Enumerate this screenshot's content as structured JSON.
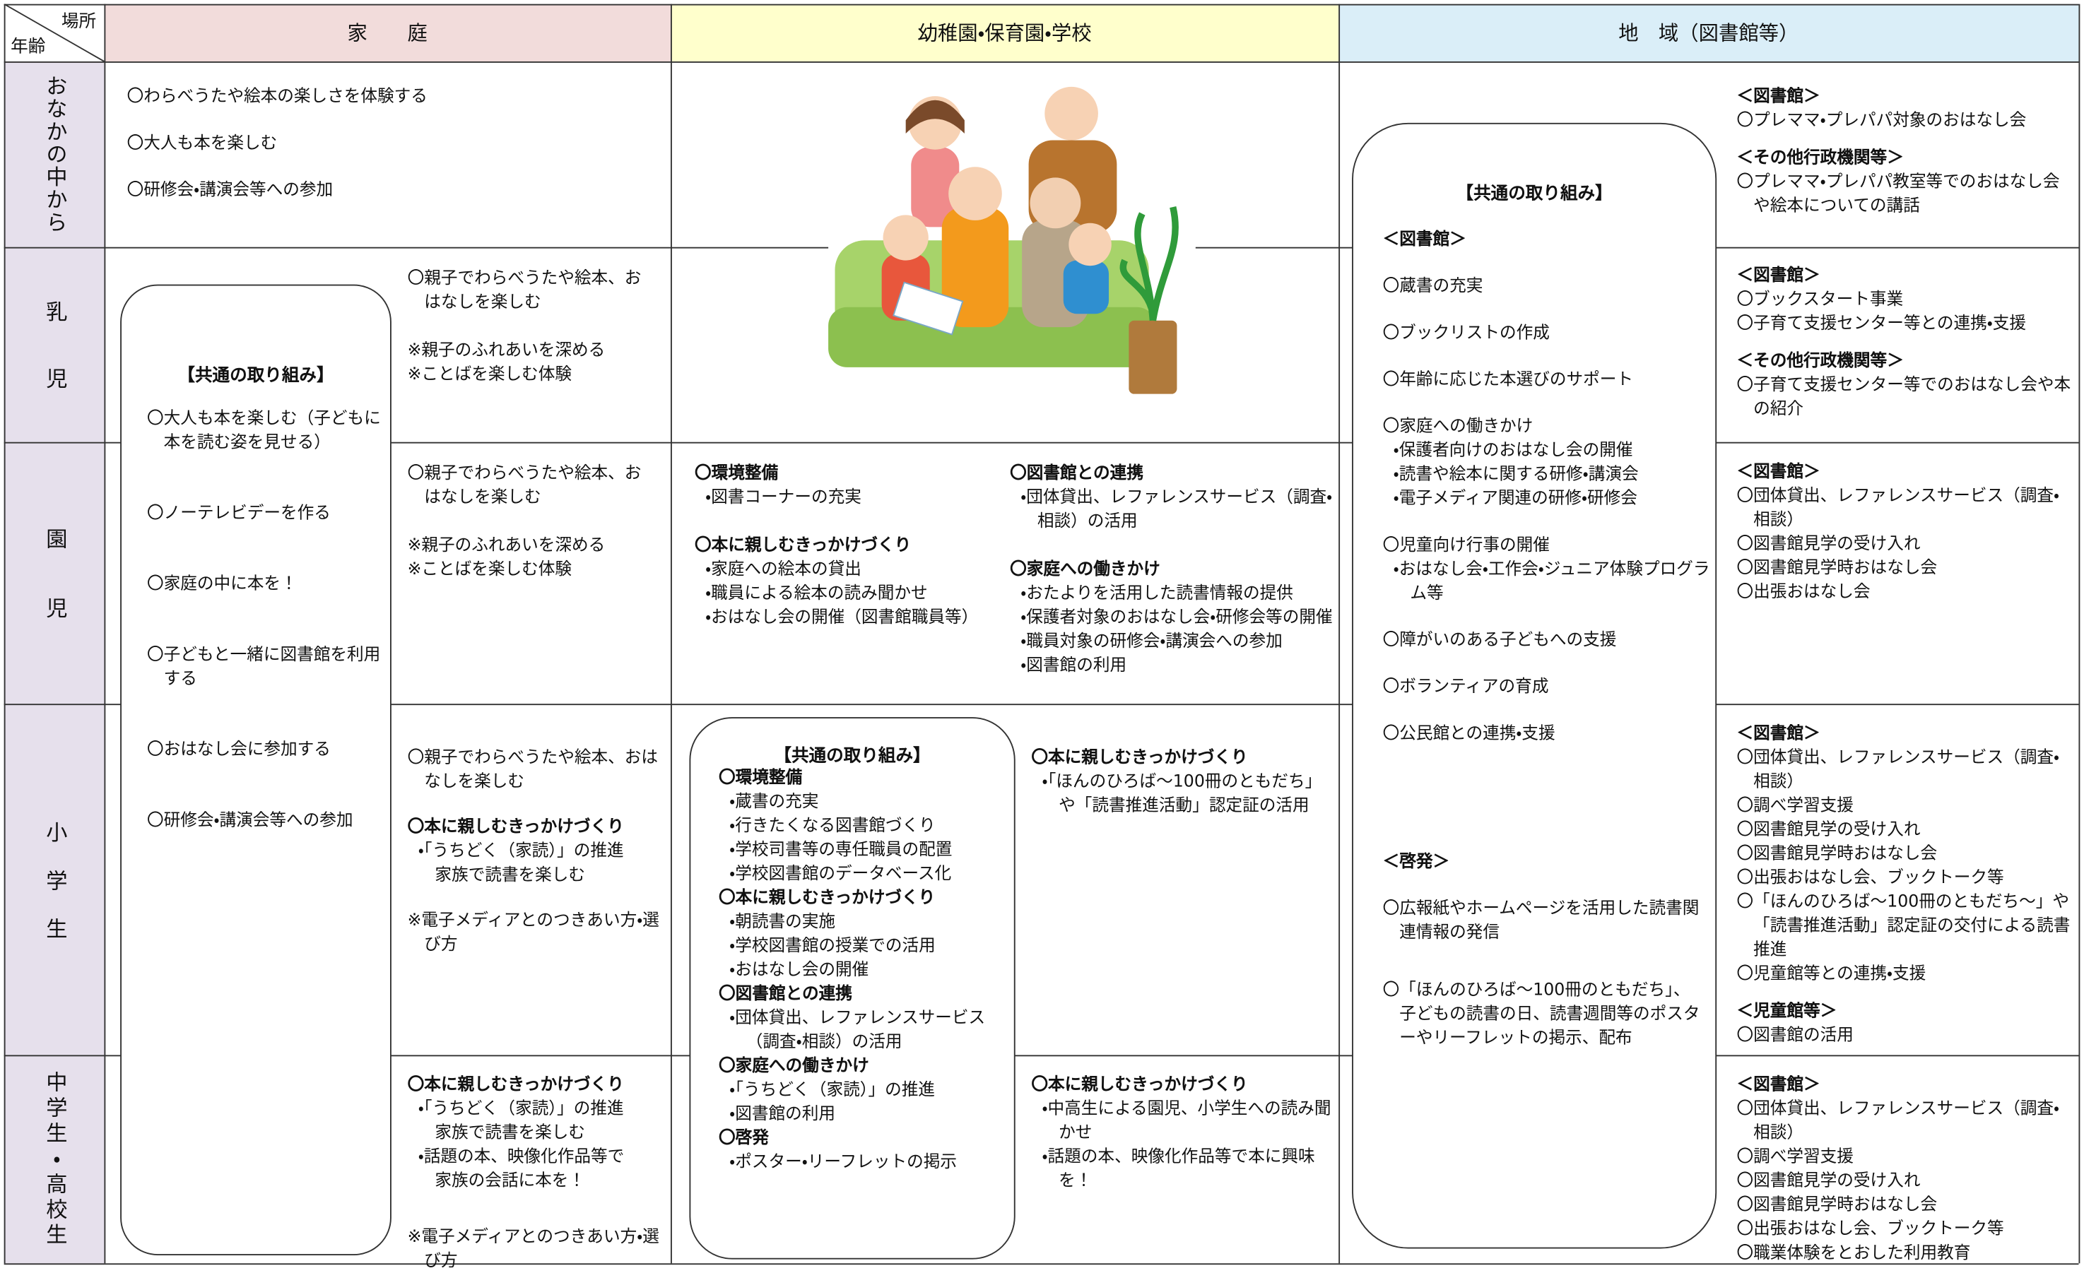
{
  "header": {
    "corner_place": "場所",
    "corner_age": "年齢",
    "columns": [
      "家　　庭",
      "幼稚園・保育園・学校",
      "地　域（図書館等）"
    ]
  },
  "rows": [
    "おなかの中から",
    "乳児",
    "園児",
    "小学生",
    "中学生・高校生"
  ],
  "home": {
    "pregnancy": [
      "〇わらべうたや絵本の楽しさを体験する",
      "〇大人も本を楽しむ",
      "〇研修会・講演会等への参加"
    ],
    "common": {
      "title": "【共通の取り組み】",
      "items": [
        "〇大人も本を楽しむ（子どもに本を読む姿を見せる）",
        "〇ノーテレビデーを作る",
        "〇家庭の中に本を！",
        "〇子どもと一緒に図書館を利用する",
        "〇おはなし会に参加する",
        "〇研修会・講演会等への参加"
      ]
    },
    "infant": [
      "〇親子でわらべうたや絵本、おはなしを楽しむ",
      [
        "※親子のふれあいを深める",
        "※ことばを楽しむ体験"
      ]
    ],
    "preschool": [
      "〇親子でわらべうたや絵本、おはなしを楽しむ",
      [
        "※親子のふれあいを深める",
        "※ことばを楽しむ体験"
      ]
    ],
    "elementary": [
      "〇親子でわらべうたや絵本、おはなしを楽しむ",
      {
        "heading": "〇本に親しむきっかけづくり",
        "items": [
          "・「うちどく（家読）」の推進",
          "家族で読書を楽しむ"
        ]
      },
      "※電子メディアとのつきあい方・選び方"
    ],
    "secondary": [
      {
        "heading": "〇本に親しむきっかけづくり",
        "items": [
          "・「うちどく（家読）」の推進",
          "家族で読書を楽しむ",
          "・話題の本、映像化作品等で",
          "家族の会話に本を！"
        ]
      },
      "※電子メディアとのつきあい方・選び方"
    ]
  },
  "school": {
    "preschool": {
      "left": [
        {
          "heading": "〇環境整備",
          "items": [
            "・図書コーナーの充実"
          ]
        },
        {
          "heading": "〇本に親しむきっかけづくり",
          "items": [
            "・家庭への絵本の貸出",
            "・職員による絵本の読み聞かせ",
            "・おはなし会の開催（図書館職員等）"
          ]
        }
      ],
      "right": [
        {
          "heading": "〇図書館との連携",
          "items": [
            "・団体貸出、レファレンスサービス（調査・相談）の活用"
          ]
        },
        {
          "heading": "〇家庭への働きかけ",
          "items": [
            "・おたよりを活用した読書情報の提供",
            "・保護者対象のおはなし会・研修会等の開催",
            "・職員対象の研修会・講演会への参加",
            "・図書館の利用"
          ]
        }
      ]
    },
    "common": {
      "title": "【共通の取り組み】",
      "items": [
        {
          "heading": "〇環境整備",
          "items": [
            "・蔵書の充実",
            "・行きたくなる図書館づくり",
            "・学校司書等の専任職員の配置",
            "・学校図書館のデータベース化"
          ]
        },
        {
          "heading": "〇本に親しむきっかけづくり",
          "items": [
            "・朝読書の実施",
            "・学校図書館の授業での活用",
            "・おはなし会の開催"
          ]
        },
        {
          "heading": "〇図書館との連携",
          "items": [
            "・団体貸出、レファレンスサービス（調査・相談）の活用"
          ]
        },
        {
          "heading": "〇家庭への働きかけ",
          "items": [
            "・「うちどく（家読）」の推進",
            "・図書館の利用"
          ]
        },
        {
          "heading": "〇啓発",
          "items": [
            "・ポスター・リーフレットの掲示"
          ]
        }
      ]
    },
    "elementary": [
      {
        "heading": "〇本に親しむきっかけづくり",
        "items": [
          "・「ほんのひろば～100冊のともだち」や「読書推進活動」認定証の活用"
        ]
      }
    ],
    "secondary": [
      {
        "heading": "〇本に親しむきっかけづくり",
        "items": [
          "・中高生による園児、小学生への読み聞かせ",
          "・話題の本、映像化作品等で本に興味を！"
        ]
      }
    ]
  },
  "community": {
    "common": {
      "title": "【共通の取り組み】",
      "sections": [
        {
          "heading": "＜図書館＞",
          "items": [
            "〇蔵書の充実",
            "〇ブックリストの作成",
            "〇年齢に応じた本選びのサポート",
            {
              "text": "〇家庭への働きかけ",
              "sub": [
                "・保護者向けのおはなし会の開催",
                "・読書や絵本に関する研修・講演会",
                "・電子メディア関連の研修・研修会"
              ]
            },
            {
              "text": "〇児童向け行事の開催",
              "sub": [
                "・おはなし会・工作会・ジュニア体験プログラム等"
              ]
            },
            "〇障がいのある子どもへの支援",
            "〇ボランティアの育成",
            "〇公民館との連携・支援"
          ]
        },
        {
          "heading": "＜啓発＞",
          "items": [
            "〇広報紙やホームページを活用した読書関連情報の発信",
            "〇「ほんのひろば～100冊のともだち」、子どもの読書の日、読書週間等のポスターやリーフレットの掲示、配布"
          ]
        }
      ]
    },
    "pregnancy": [
      {
        "heading": "＜図書館＞",
        "items": [
          "〇プレママ・プレパパ対象のおはなし会"
        ]
      },
      {
        "heading": "＜その他行政機関等＞",
        "items": [
          "〇プレママ・プレパパ教室等でのおはなし会や絵本についての講話"
        ]
      }
    ],
    "infant": [
      {
        "heading": "＜図書館＞",
        "items": [
          "〇ブックスタート事業",
          "〇子育て支援センター等との連携・支援"
        ]
      },
      {
        "heading": "＜その他行政機関等＞",
        "items": [
          "〇子育て支援センター等でのおはなし会や本の紹介"
        ]
      }
    ],
    "preschool": [
      {
        "heading": "＜図書館＞",
        "items": [
          "〇団体貸出、レファレンスサービス（調査・相談）",
          "〇図書館見学の受け入れ",
          "〇図書館見学時おはなし会",
          "〇出張おはなし会"
        ]
      }
    ],
    "elementary": [
      {
        "heading": "＜図書館＞",
        "items": [
          "〇団体貸出、レファレンスサービス（調査・相談）",
          "〇調べ学習支援",
          "〇図書館見学の受け入れ",
          "〇図書館見学時おはなし会",
          "〇出張おはなし会、ブックトーク等",
          "〇「ほんのひろば～100冊のともだち～」や「読書推進活動」認定証の交付による読書推進",
          "〇児童館等との連携・支援"
        ]
      },
      {
        "heading": "＜児童館等＞",
        "items": [
          "〇図書館の活用"
        ]
      }
    ],
    "secondary": [
      {
        "heading": "＜図書館＞",
        "items": [
          "〇団体貸出、レファレンスサービス（調査・相談）",
          "〇調べ学習支援",
          "〇図書館見学の受け入れ",
          "〇図書館見学時おはなし会",
          "〇出張おはなし会、ブックトーク等",
          "〇職業体験をとおした利用教育"
        ]
      }
    ]
  }
}
